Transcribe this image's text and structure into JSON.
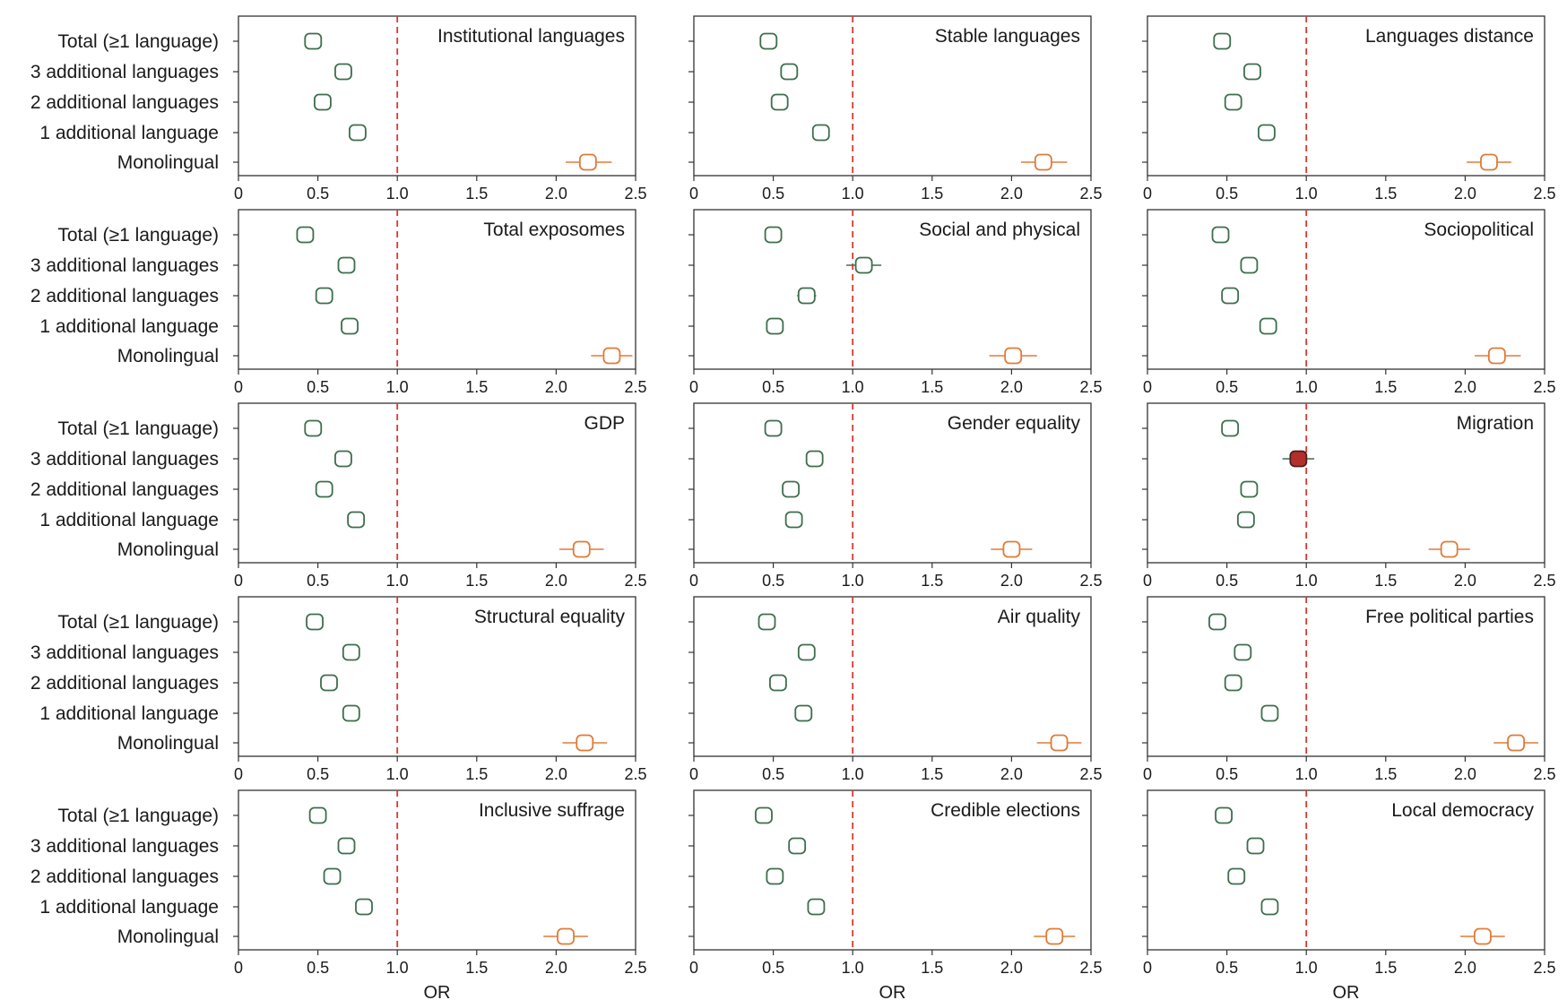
{
  "chart_data": {
    "type": "forest",
    "xlabel": "OR",
    "xlim": [
      0,
      2.5
    ],
    "xticks": [
      "0",
      "0.5",
      "1.0",
      "1.5",
      "2.0",
      "2.5"
    ],
    "reference_line": 1.0,
    "rows": [
      "Total (≥1 language)",
      "3 additional languages",
      "2 additional languages",
      "1 additional language",
      "Monolingual"
    ],
    "colors": {
      "multilingual": "#3d6e4e",
      "monolingual": "#e07b39",
      "highlight": "#b3302a"
    },
    "panels": [
      {
        "title": "Institutional languages",
        "or": [
          0.47,
          0.66,
          0.53,
          0.75,
          2.2
        ],
        "lo": [
          0.42,
          0.61,
          0.48,
          0.7,
          2.06
        ],
        "hi": [
          0.52,
          0.71,
          0.58,
          0.8,
          2.35
        ]
      },
      {
        "title": "Stable languages",
        "or": [
          0.47,
          0.6,
          0.54,
          0.8,
          2.2
        ],
        "lo": [
          0.42,
          0.55,
          0.49,
          0.75,
          2.06
        ],
        "hi": [
          0.52,
          0.65,
          0.59,
          0.85,
          2.35
        ]
      },
      {
        "title": "Languages distance",
        "or": [
          0.47,
          0.66,
          0.54,
          0.75,
          2.15
        ],
        "lo": [
          0.42,
          0.61,
          0.49,
          0.7,
          2.01
        ],
        "hi": [
          0.52,
          0.71,
          0.59,
          0.8,
          2.29
        ]
      },
      {
        "title": "Total exposomes",
        "or": [
          0.42,
          0.68,
          0.54,
          0.7,
          2.35
        ],
        "lo": [
          0.37,
          0.63,
          0.49,
          0.65,
          2.22
        ],
        "hi": [
          0.47,
          0.73,
          0.59,
          0.75,
          2.48
        ]
      },
      {
        "title": "Social and physical",
        "or": [
          0.5,
          1.07,
          0.71,
          0.51,
          2.01
        ],
        "lo": [
          0.45,
          0.96,
          0.65,
          0.46,
          1.86
        ],
        "hi": [
          0.55,
          1.18,
          0.77,
          0.56,
          2.16
        ]
      },
      {
        "title": "Sociopolitical",
        "or": [
          0.46,
          0.64,
          0.52,
          0.76,
          2.2
        ],
        "lo": [
          0.41,
          0.59,
          0.47,
          0.71,
          2.06
        ],
        "hi": [
          0.51,
          0.69,
          0.57,
          0.81,
          2.35
        ]
      },
      {
        "title": "GDP",
        "or": [
          0.47,
          0.66,
          0.54,
          0.74,
          2.16
        ],
        "lo": [
          0.42,
          0.61,
          0.49,
          0.69,
          2.02
        ],
        "hi": [
          0.52,
          0.71,
          0.59,
          0.79,
          2.3
        ]
      },
      {
        "title": "Gender equality",
        "or": [
          0.5,
          0.76,
          0.61,
          0.63,
          2.0
        ],
        "lo": [
          0.45,
          0.71,
          0.56,
          0.58,
          1.87
        ],
        "hi": [
          0.55,
          0.81,
          0.66,
          0.68,
          2.13
        ]
      },
      {
        "title": "Migration",
        "or": [
          0.52,
          0.95,
          0.64,
          0.62,
          1.9
        ],
        "lo": [
          0.47,
          0.85,
          0.59,
          0.57,
          1.77
        ],
        "hi": [
          0.57,
          1.05,
          0.69,
          0.67,
          2.03
        ],
        "highlight": [
          false,
          true,
          false,
          false,
          false
        ]
      },
      {
        "title": "Structural equality",
        "or": [
          0.48,
          0.71,
          0.57,
          0.71,
          2.18
        ],
        "lo": [
          0.43,
          0.66,
          0.52,
          0.66,
          2.04
        ],
        "hi": [
          0.53,
          0.76,
          0.62,
          0.76,
          2.32
        ]
      },
      {
        "title": "Air quality",
        "or": [
          0.46,
          0.71,
          0.53,
          0.69,
          2.3
        ],
        "lo": [
          0.41,
          0.66,
          0.48,
          0.64,
          2.16
        ],
        "hi": [
          0.51,
          0.76,
          0.58,
          0.74,
          2.44
        ]
      },
      {
        "title": "Free political parties",
        "or": [
          0.44,
          0.6,
          0.54,
          0.77,
          2.32
        ],
        "lo": [
          0.39,
          0.55,
          0.49,
          0.72,
          2.18
        ],
        "hi": [
          0.49,
          0.65,
          0.59,
          0.82,
          2.46
        ]
      },
      {
        "title": "Inclusive suffrage",
        "or": [
          0.5,
          0.68,
          0.59,
          0.79,
          2.06
        ],
        "lo": [
          0.45,
          0.63,
          0.54,
          0.74,
          1.92
        ],
        "hi": [
          0.55,
          0.73,
          0.64,
          0.84,
          2.2
        ]
      },
      {
        "title": "Credible elections",
        "or": [
          0.44,
          0.65,
          0.51,
          0.77,
          2.27
        ],
        "lo": [
          0.39,
          0.6,
          0.46,
          0.72,
          2.14
        ],
        "hi": [
          0.49,
          0.7,
          0.56,
          0.82,
          2.4
        ]
      },
      {
        "title": "Local democracy",
        "or": [
          0.48,
          0.68,
          0.56,
          0.77,
          2.11
        ],
        "lo": [
          0.43,
          0.63,
          0.51,
          0.72,
          1.97
        ],
        "hi": [
          0.53,
          0.73,
          0.61,
          0.82,
          2.25
        ]
      }
    ]
  }
}
